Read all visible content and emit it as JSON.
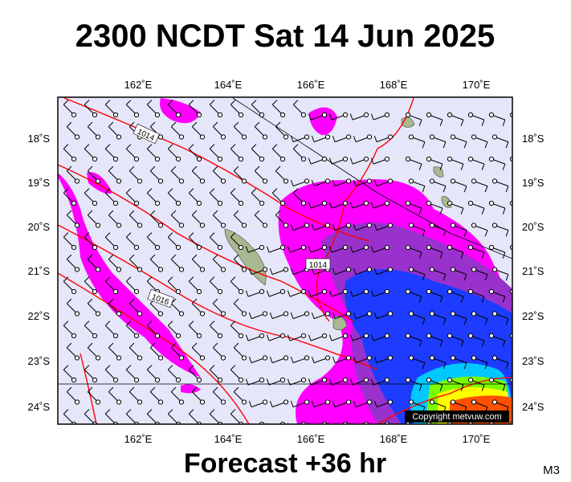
{
  "header": {
    "title": "2300 NCDT Sat 14 Jun 2025"
  },
  "map": {
    "lon_labels": [
      "162˚E",
      "164˚E",
      "166˚E",
      "168˚E",
      "170˚E"
    ],
    "lat_labels": [
      "18˚S",
      "19˚S",
      "20˚S",
      "21˚S",
      "22˚S",
      "23˚S",
      "24˚S"
    ],
    "isobar_labels": [
      "1014",
      "1014",
      "1016"
    ],
    "copyright": "Copyright metvuw.com"
  },
  "footer": {
    "forecast": "Forecast +36 hr",
    "model": "M3"
  }
}
